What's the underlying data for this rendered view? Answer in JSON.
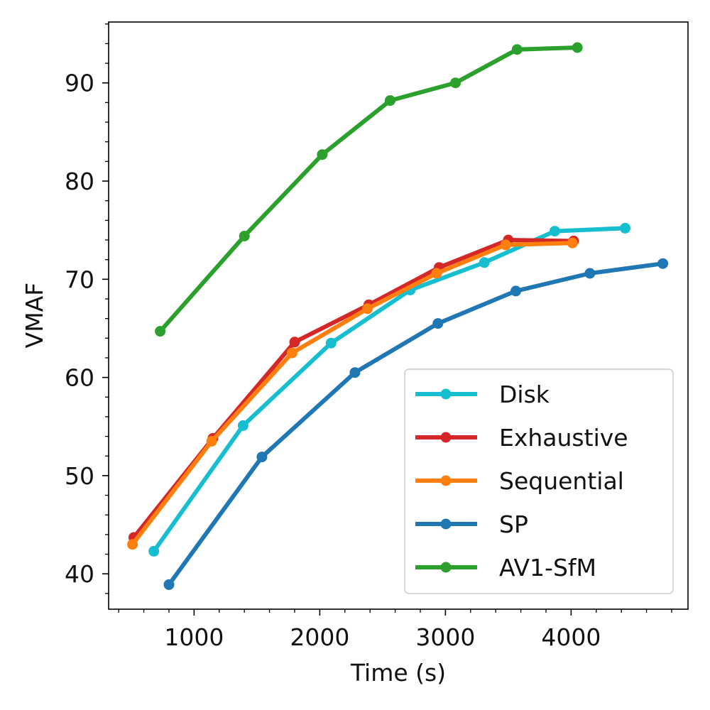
{
  "chart_data": {
    "type": "line",
    "title": "",
    "xlabel": "Time (s)",
    "ylabel": "VMAF",
    "xlim": [
      320,
      4930
    ],
    "ylim": [
      36.4,
      96.2
    ],
    "xticks": [
      1000,
      2000,
      3000,
      4000
    ],
    "yticks": [
      40,
      50,
      60,
      70,
      80,
      90
    ],
    "xtick_labels": [
      "1000",
      "2000",
      "3000",
      "4000"
    ],
    "ytick_labels": [
      "40",
      "50",
      "60",
      "70",
      "80",
      "90"
    ],
    "grid": false,
    "legend_position": "lower-right",
    "series": [
      {
        "name": "Disk",
        "color": "#17becf",
        "x": [
          680,
          1390,
          2090,
          2720,
          3310,
          3870,
          4430
        ],
        "y": [
          42.3,
          55.1,
          63.5,
          68.9,
          71.7,
          74.9,
          75.2
        ]
      },
      {
        "name": "Exhaustive",
        "color": "#d62728",
        "x": [
          520,
          1150,
          1800,
          2390,
          2950,
          3500,
          4020
        ],
        "y": [
          43.7,
          53.8,
          63.6,
          67.4,
          71.2,
          74.0,
          73.9
        ]
      },
      {
        "name": "Sequential",
        "color": "#ff7f0e",
        "x": [
          510,
          1140,
          1780,
          2380,
          2930,
          3480,
          4010
        ],
        "y": [
          43.0,
          53.5,
          62.5,
          67.0,
          70.6,
          73.5,
          73.7
        ]
      },
      {
        "name": "SP",
        "color": "#1f77b4",
        "x": [
          800,
          1540,
          2280,
          2940,
          3560,
          4150,
          4730
        ],
        "y": [
          38.9,
          51.9,
          60.5,
          65.5,
          68.8,
          70.6,
          71.6
        ]
      },
      {
        "name": "AV1-SfM",
        "color": "#2ca02c",
        "x": [
          730,
          1400,
          2020,
          2560,
          3080,
          3570,
          4050
        ],
        "y": [
          64.7,
          74.4,
          82.7,
          88.2,
          90.0,
          93.4,
          93.6
        ]
      }
    ]
  }
}
